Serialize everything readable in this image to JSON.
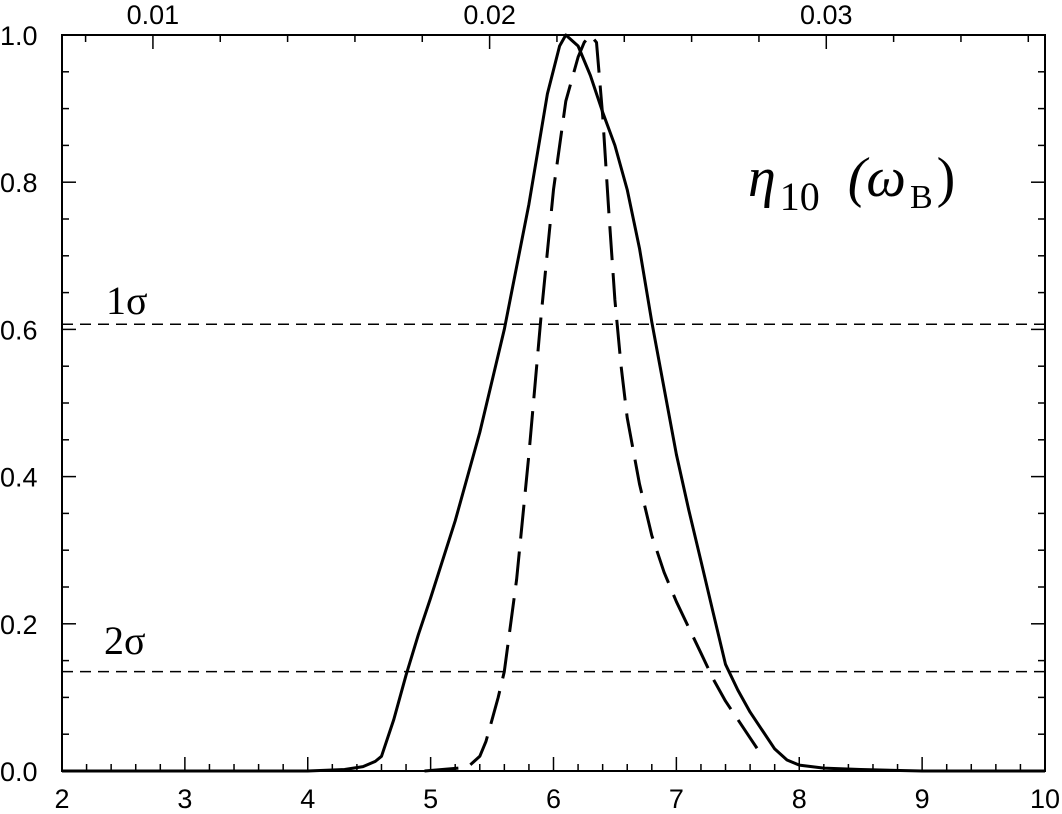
{
  "chart_data": {
    "type": "line",
    "title": "",
    "xlabel": "",
    "ylabel": "",
    "xlim": [
      2,
      10
    ],
    "ylim": [
      0,
      1
    ],
    "grid": false,
    "x_ticks": [
      2,
      3,
      4,
      5,
      6,
      7,
      8,
      9,
      10
    ],
    "y_ticks": [
      0.0,
      0.2,
      0.4,
      0.6,
      0.8,
      1.0
    ],
    "x_tick_labels": [
      "2",
      "3",
      "4",
      "5",
      "6",
      "7",
      "8",
      "9",
      "10"
    ],
    "y_tick_labels": [
      "0.0",
      "0.2",
      "0.4",
      "0.6",
      "0.8",
      "1.0"
    ],
    "top_axis": {
      "tick_labels": [
        "0.01",
        "0.02",
        "0.03"
      ],
      "tick_values": [
        0.01,
        0.02,
        0.03
      ],
      "x_positions": [
        2.74,
        5.48,
        8.22
      ]
    },
    "annotations": [
      {
        "text": "η",
        "sub": "10",
        "text2": "(ω",
        "sub2": "B",
        "text3": ")"
      },
      {
        "text": "1σ"
      },
      {
        "text": "2σ"
      }
    ],
    "reference_lines": [
      {
        "label": "1σ",
        "y": 0.607
      },
      {
        "label": "2σ",
        "y": 0.135
      }
    ],
    "series": [
      {
        "style": "solid",
        "x": [
          2.0,
          3.0,
          4.0,
          4.3,
          4.45,
          4.55,
          4.6,
          4.7,
          4.8,
          4.9,
          5.0,
          5.2,
          5.4,
          5.6,
          5.8,
          5.95,
          6.05,
          6.1,
          6.2,
          6.3,
          6.4,
          6.5,
          6.6,
          6.7,
          6.8,
          6.9,
          7.0,
          7.1,
          7.2,
          7.3,
          7.4,
          7.5,
          7.6,
          7.7,
          7.8,
          7.9,
          8.0,
          8.2,
          8.5,
          9.0,
          10.0
        ],
        "y": [
          0.0,
          0.0,
          0.0,
          0.002,
          0.006,
          0.013,
          0.02,
          0.07,
          0.13,
          0.185,
          0.235,
          0.34,
          0.46,
          0.6,
          0.77,
          0.92,
          0.985,
          1.0,
          0.985,
          0.945,
          0.895,
          0.85,
          0.79,
          0.71,
          0.61,
          0.52,
          0.43,
          0.355,
          0.285,
          0.215,
          0.145,
          0.11,
          0.08,
          0.055,
          0.03,
          0.015,
          0.008,
          0.004,
          0.002,
          0.0,
          0.0
        ]
      },
      {
        "style": "dashed",
        "x": [
          4.95,
          5.3,
          5.4,
          5.45,
          5.5,
          5.55,
          5.6,
          5.7,
          5.8,
          5.9,
          6.0,
          6.1,
          6.2,
          6.25,
          6.3,
          6.35,
          6.4,
          6.45,
          6.5,
          6.55,
          6.6,
          6.7,
          6.8,
          6.9,
          7.0,
          7.1,
          7.2,
          7.3,
          7.4,
          7.5,
          7.6,
          7.68
        ],
        "y": [
          0.0,
          0.005,
          0.02,
          0.04,
          0.07,
          0.1,
          0.135,
          0.26,
          0.43,
          0.62,
          0.79,
          0.91,
          0.97,
          0.99,
          1.0,
          0.99,
          0.89,
          0.76,
          0.64,
          0.55,
          0.48,
          0.39,
          0.32,
          0.27,
          0.23,
          0.195,
          0.16,
          0.125,
          0.095,
          0.07,
          0.045,
          0.025
        ]
      }
    ]
  }
}
